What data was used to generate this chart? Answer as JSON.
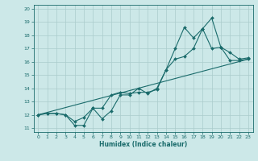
{
  "xlabel": "Humidex (Indice chaleur)",
  "bg_color": "#cce8e8",
  "grid_color": "#aacccc",
  "line_color": "#1a6b6b",
  "xlim": [
    -0.5,
    23.5
  ],
  "ylim": [
    10.7,
    20.3
  ],
  "xticks": [
    0,
    1,
    2,
    3,
    4,
    5,
    6,
    7,
    8,
    9,
    10,
    11,
    12,
    13,
    14,
    15,
    16,
    17,
    18,
    19,
    20,
    21,
    22,
    23
  ],
  "yticks": [
    11,
    12,
    13,
    14,
    15,
    16,
    17,
    18,
    19,
    20
  ],
  "line1_x": [
    0,
    1,
    2,
    3,
    4,
    5,
    6,
    7,
    8,
    9,
    10,
    11,
    12,
    13,
    14,
    15,
    16,
    17,
    18,
    19,
    20,
    21,
    22,
    23
  ],
  "line1_y": [
    12,
    12.1,
    12.1,
    12.0,
    11.2,
    11.2,
    12.5,
    12.5,
    13.5,
    13.7,
    13.6,
    13.7,
    13.7,
    13.9,
    15.4,
    16.2,
    16.4,
    17.0,
    18.5,
    17.0,
    17.1,
    16.1,
    16.1,
    16.2
  ],
  "line2_x": [
    0,
    1,
    2,
    3,
    4,
    5,
    6,
    7,
    8,
    9,
    10,
    11,
    12,
    13,
    14,
    15,
    16,
    17,
    18,
    19,
    20,
    21,
    22,
    23
  ],
  "line2_y": [
    12,
    12.1,
    12.1,
    12.0,
    11.5,
    11.8,
    12.5,
    11.7,
    12.3,
    13.5,
    13.5,
    14.0,
    13.6,
    14.0,
    15.4,
    17.0,
    18.6,
    17.8,
    18.5,
    19.3,
    17.1,
    16.7,
    16.2,
    16.3
  ],
  "line3_x": [
    0,
    23
  ],
  "line3_y": [
    12,
    16.2
  ]
}
